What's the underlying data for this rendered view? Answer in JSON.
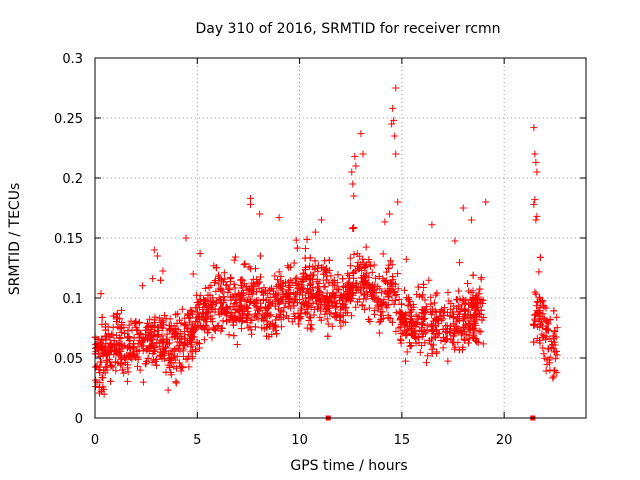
{
  "chart_data": {
    "type": "scatter",
    "title": "Day 310 of 2016, SRMTID for receiver rcmn",
    "xlabel": "GPS time / hours",
    "ylabel": "SRMTID / TECUs",
    "xlim": [
      0,
      24
    ],
    "ylim": [
      0,
      0.3
    ],
    "xticks": [
      0,
      5,
      10,
      15,
      20
    ],
    "xtick_labels": [
      "0",
      "5",
      "10",
      "15",
      "20"
    ],
    "yticks": [
      0,
      0.05,
      0.1,
      0.15,
      0.2,
      0.25,
      0.3
    ],
    "ytick_labels": [
      "0",
      "0.05",
      "0.1",
      "0.15",
      "0.2",
      "0.25",
      "0.3"
    ],
    "grid": true,
    "marker": "plus",
    "color": "#ff0000",
    "series": [
      {
        "name": "SRMTID",
        "trend": [
          [
            0.0,
            0.045
          ],
          [
            0.5,
            0.055
          ],
          [
            1.0,
            0.06
          ],
          [
            1.5,
            0.058
          ],
          [
            2.0,
            0.06
          ],
          [
            2.5,
            0.063
          ],
          [
            3.0,
            0.068
          ],
          [
            3.5,
            0.058
          ],
          [
            4.0,
            0.058
          ],
          [
            4.5,
            0.062
          ],
          [
            5.0,
            0.082
          ],
          [
            5.5,
            0.092
          ],
          [
            6.0,
            0.098
          ],
          [
            6.5,
            0.095
          ],
          [
            7.0,
            0.092
          ],
          [
            7.5,
            0.098
          ],
          [
            8.0,
            0.1
          ],
          [
            8.5,
            0.085
          ],
          [
            9.0,
            0.095
          ],
          [
            9.5,
            0.105
          ],
          [
            10.0,
            0.105
          ],
          [
            10.5,
            0.102
          ],
          [
            11.0,
            0.105
          ],
          [
            11.5,
            0.1
          ],
          [
            12.0,
            0.095
          ],
          [
            12.5,
            0.11
          ],
          [
            13.0,
            0.115
          ],
          [
            13.5,
            0.105
          ],
          [
            14.0,
            0.1
          ],
          [
            14.5,
            0.11
          ],
          [
            15.0,
            0.085
          ],
          [
            15.5,
            0.078
          ],
          [
            16.0,
            0.08
          ],
          [
            16.5,
            0.078
          ],
          [
            17.0,
            0.075
          ],
          [
            17.5,
            0.08
          ],
          [
            18.0,
            0.08
          ],
          [
            18.5,
            0.085
          ],
          [
            19.0,
            0.09
          ],
          [
            21.4,
            0.085
          ],
          [
            21.7,
            0.09
          ],
          [
            22.0,
            0.07
          ],
          [
            22.3,
            0.06
          ],
          [
            22.6,
            0.055
          ]
        ],
        "highlights": [
          [
            14.7,
            0.275
          ],
          [
            14.55,
            0.258
          ],
          [
            14.6,
            0.248
          ],
          [
            14.5,
            0.245
          ],
          [
            14.65,
            0.235
          ],
          [
            13.0,
            0.237
          ],
          [
            12.7,
            0.218
          ],
          [
            13.1,
            0.22
          ],
          [
            14.7,
            0.22
          ],
          [
            12.75,
            0.21
          ],
          [
            12.55,
            0.205
          ],
          [
            12.6,
            0.195
          ],
          [
            12.65,
            0.185
          ],
          [
            7.6,
            0.183
          ],
          [
            7.6,
            0.178
          ],
          [
            8.05,
            0.17
          ],
          [
            9.0,
            0.167
          ],
          [
            4.45,
            0.15
          ],
          [
            2.9,
            0.14
          ],
          [
            3.05,
            0.135
          ],
          [
            14.4,
            0.17
          ],
          [
            14.8,
            0.18
          ],
          [
            18.0,
            0.175
          ],
          [
            18.4,
            0.165
          ],
          [
            19.1,
            0.18
          ]
        ],
        "late_highlights": [
          [
            21.45,
            0.242
          ],
          [
            21.5,
            0.22
          ],
          [
            21.55,
            0.213
          ],
          [
            21.6,
            0.205
          ],
          [
            21.5,
            0.182
          ],
          [
            21.45,
            0.178
          ],
          [
            21.6,
            0.168
          ],
          [
            21.55,
            0.165
          ]
        ],
        "gaps": [
          [
            19.1,
            21.3
          ]
        ],
        "spread": 0.025,
        "density_per_hour": 110
      }
    ],
    "markers_zero": [
      {
        "x": 11.4,
        "y": 0
      },
      {
        "x": 21.4,
        "y": 0
      }
    ]
  }
}
